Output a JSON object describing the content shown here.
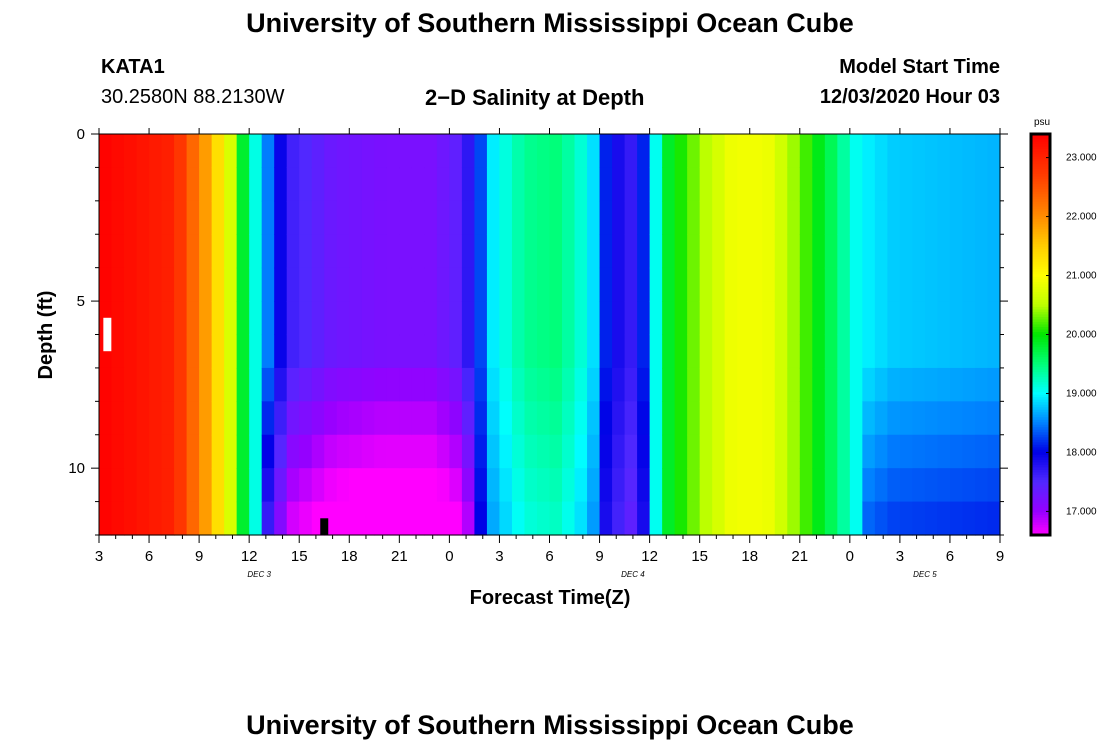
{
  "header": {
    "title": "University of Southern Mississippi Ocean Cube",
    "station": "KATA1",
    "coords": "30.2580N 88.2130W",
    "subtitle": "2−D Salinity at Depth",
    "start_label": "Model Start Time",
    "start_value": "12/03/2020 Hour 03"
  },
  "footer": {
    "title": "University of Southern Mississippi Ocean Cube"
  },
  "chart_data": {
    "type": "heatmap",
    "title": "2-D Salinity at Depth",
    "xlabel": "Forecast Time(Z)",
    "ylabel": "Depth (ft)",
    "x_hours_range": [
      0,
      54
    ],
    "y_range_ft": [
      0,
      12
    ],
    "x_tick_labels": [
      "3",
      "6",
      "9",
      "12",
      "15",
      "18",
      "21",
      "0",
      "3",
      "6",
      "9",
      "12",
      "15",
      "18",
      "21",
      "0",
      "3",
      "6",
      "9"
    ],
    "y_tick_labels": [
      "0",
      "5",
      "10"
    ],
    "y_tick_values": [
      0,
      5,
      10
    ],
    "day_labels": [
      {
        "label": "DEC 3",
        "hour": 9.6
      },
      {
        "label": "DEC 4",
        "hour": 32
      },
      {
        "label": "DEC 5",
        "hour": 49.5
      }
    ],
    "colorbar": {
      "unit": "psu",
      "range": [
        16.6,
        23.4
      ],
      "ticks": [
        "23.000",
        "22.000",
        "21.000",
        "20.000",
        "19.000",
        "18.000",
        "17.000"
      ],
      "tick_values": [
        23,
        22,
        21,
        20,
        19,
        18,
        17
      ]
    },
    "depth_bands_ft": [
      0,
      1,
      2,
      3,
      4,
      5,
      6,
      7,
      8,
      9,
      10,
      11
    ],
    "time_keyframes": [
      {
        "h": 0,
        "s": 23.4
      },
      {
        "h": 4.5,
        "s": 23.0
      },
      {
        "h": 6.5,
        "s": 21.8
      },
      {
        "h": 7.8,
        "s": 20.8
      },
      {
        "h": 8.8,
        "s": 19.6
      },
      {
        "h": 9.6,
        "s": 18.9
      },
      {
        "h": 10.6,
        "s": 18.1
      },
      {
        "h": 11.5,
        "s": 17.6
      },
      {
        "h": 14,
        "s": 17.3
      },
      {
        "h": 17,
        "s": 17.2
      },
      {
        "h": 20,
        "s": 17.2
      },
      {
        "h": 21.5,
        "s": 17.4
      },
      {
        "h": 22.5,
        "s": 17.9
      },
      {
        "h": 23.5,
        "s": 18.9
      },
      {
        "h": 25.5,
        "s": 19.4
      },
      {
        "h": 27.5,
        "s": 19.5
      },
      {
        "h": 29.5,
        "s": 19.0
      },
      {
        "h": 30.5,
        "s": 18.0
      },
      {
        "h": 32.2,
        "s": 17.6
      },
      {
        "h": 33,
        "s": 18.6
      },
      {
        "h": 34,
        "s": 19.8
      },
      {
        "h": 36,
        "s": 20.4
      },
      {
        "h": 38,
        "s": 20.9
      },
      {
        "h": 40,
        "s": 20.9
      },
      {
        "h": 42,
        "s": 20.3
      },
      {
        "h": 44,
        "s": 19.6
      },
      {
        "h": 45.5,
        "s": 19.0
      },
      {
        "h": 47.5,
        "s": 18.8
      },
      {
        "h": 54,
        "s": 18.7
      }
    ],
    "markers": [
      {
        "label": "white",
        "hour": 0.5,
        "depth_ft": [
          5.5,
          6.5
        ],
        "color": "#ffffff"
      },
      {
        "label": "black",
        "hour": 13.5,
        "depth_ft": [
          11.5,
          12
        ],
        "color": "#000000"
      }
    ]
  }
}
